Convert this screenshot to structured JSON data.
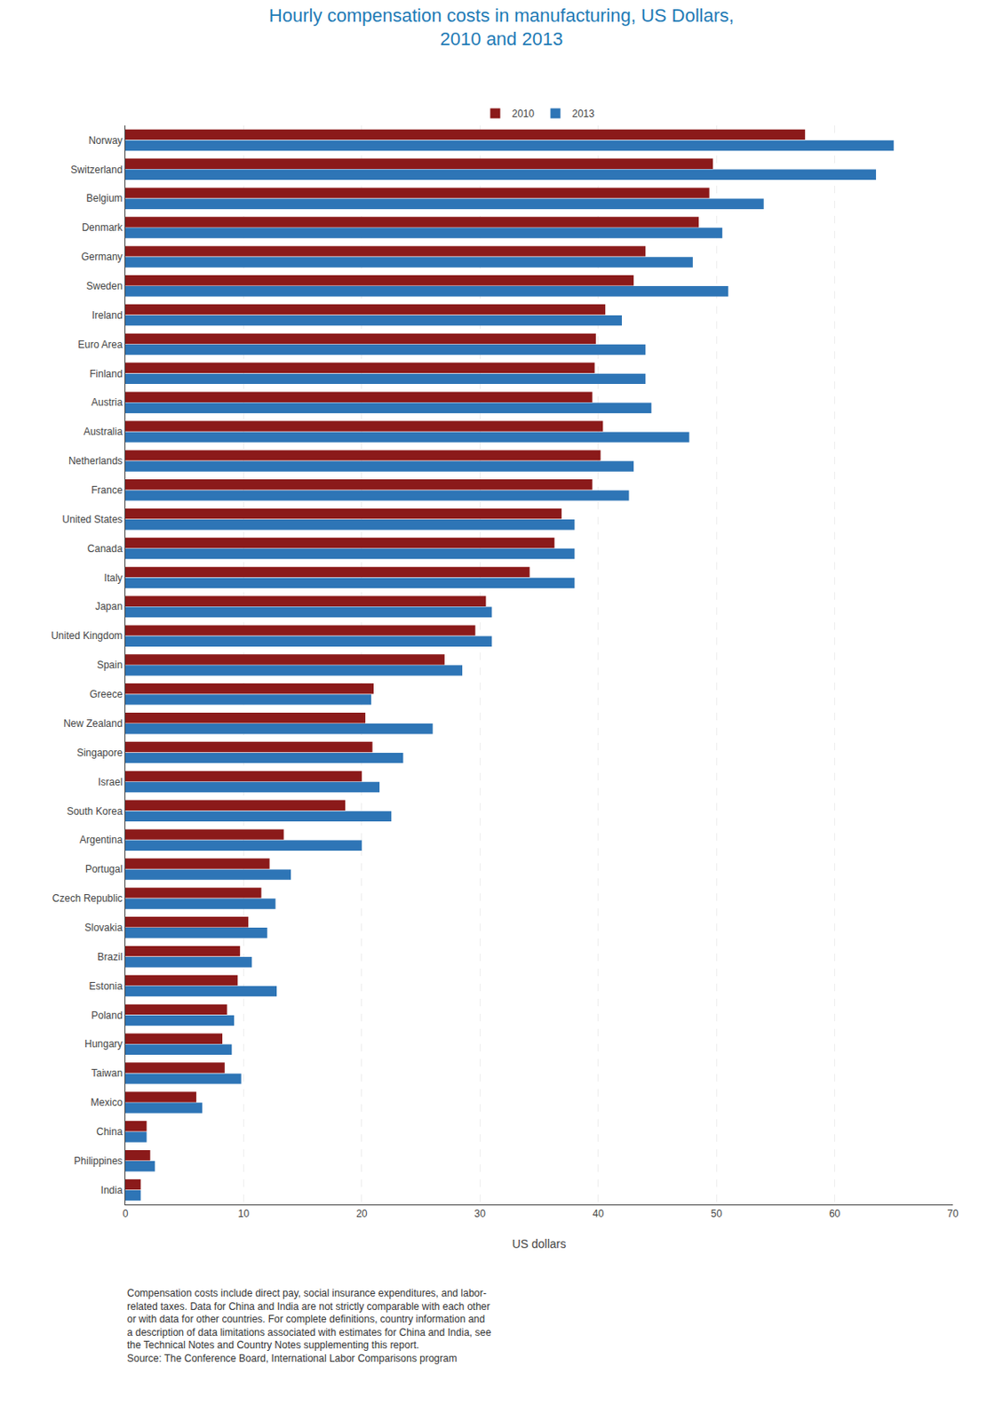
{
  "chart_data": {
    "type": "bar",
    "orientation": "horizontal",
    "title": "Hourly compensation costs in manufacturing, US Dollars,\n2010 and 2013",
    "xlabel": "US dollars",
    "categories": [
      "Norway",
      "Switzerland",
      "Belgium",
      "Denmark",
      "Germany",
      "Sweden",
      "Ireland",
      "Euro Area",
      "Finland",
      "Austria",
      "Australia",
      "Netherlands",
      "France",
      "United States",
      "Canada",
      "Italy",
      "Japan",
      "United Kingdom",
      "Spain",
      "Greece",
      "New Zealand",
      "Singapore",
      "Israel",
      "South Korea",
      "Argentina",
      "Portugal",
      "Czech Republic",
      "Slovakia",
      "Brazil",
      "Estonia",
      "Poland",
      "Hungary",
      "Taiwan",
      "Mexico",
      "China",
      "Philippines",
      "India"
    ],
    "series": [
      {
        "name": "2010",
        "color": "#8B1A1A",
        "values": [
          57.5,
          49.7,
          49.4,
          48.5,
          44.0,
          43.0,
          40.6,
          39.8,
          39.7,
          39.5,
          40.4,
          40.2,
          39.5,
          36.9,
          36.3,
          34.2,
          30.5,
          29.6,
          27.0,
          21.0,
          20.3,
          20.9,
          20.0,
          18.6,
          13.4,
          12.2,
          11.5,
          10.4,
          9.7,
          9.5,
          8.6,
          8.2,
          8.4,
          6.0,
          1.8,
          2.1,
          1.3
        ]
      },
      {
        "name": "2013",
        "color": "#2E75B6",
        "values": [
          65.0,
          63.5,
          54.0,
          50.5,
          48.0,
          51.0,
          42.0,
          44.0,
          44.0,
          44.5,
          47.7,
          43.0,
          42.6,
          38.0,
          38.0,
          38.0,
          31.0,
          31.0,
          28.5,
          20.8,
          26.0,
          23.5,
          21.5,
          22.5,
          20.0,
          14.0,
          12.7,
          12.0,
          10.7,
          12.8,
          9.2,
          9.0,
          9.8,
          6.5,
          1.8,
          2.5,
          1.3
        ]
      }
    ],
    "xlim": [
      0,
      70
    ],
    "xticks": [
      0,
      10,
      20,
      30,
      40,
      50,
      60,
      70
    ],
    "grid": true,
    "legend": "top",
    "annotations": [
      "Compensation costs include direct pay, social insurance expenditures, and labor-\nrelated taxes. Data for China and India are not strictly comparable with each other\nor with data for other countries. For complete definitions, country information and\na description of data limitations associated with estimates for China and India, see\nthe Technical Notes and Country Notes supplementing this report.\nSource: The Conference Board, International Labor Comparisons program"
    ]
  }
}
